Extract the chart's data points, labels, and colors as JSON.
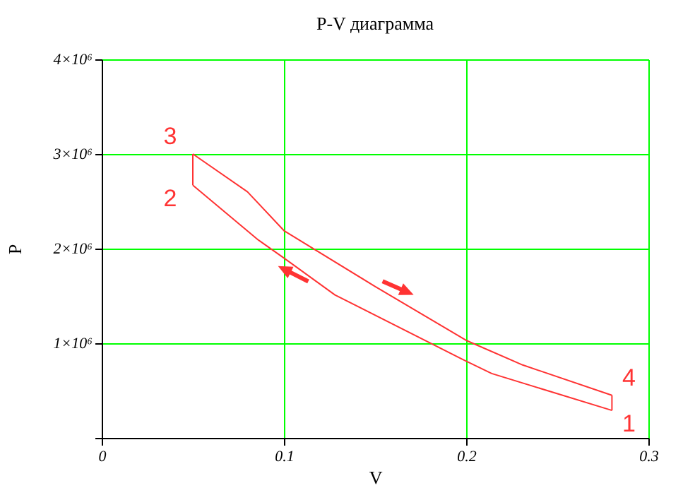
{
  "chart_data": {
    "type": "line",
    "title": "P-V диаграмма",
    "xlabel": "V",
    "ylabel": "P",
    "series": [
      {
        "color": "#ff3333",
        "x": [
          0.05,
          0.086,
          0.1,
          0.128,
          0.2,
          0.214,
          0.28
        ],
        "values": [
          2670000,
          2090000,
          1900000,
          1510000,
          810000,
          680000,
          290000
        ]
      },
      {
        "color": "#ff3333",
        "x": [
          0.05,
          0.08,
          0.1,
          0.15,
          0.2,
          0.231,
          0.28
        ],
        "values": [
          3000000,
          2600000,
          2190000,
          1600000,
          1030000,
          770000,
          450000
        ]
      },
      {
        "color": "#ff3333",
        "x": [
          0.05,
          0.05
        ],
        "values": [
          2670000,
          3000000
        ]
      },
      {
        "color": "#ff3333",
        "x": [
          0.28,
          0.28
        ],
        "values": [
          450000,
          290000
        ]
      }
    ],
    "xlim": [
      0,
      0.3
    ],
    "xticks": [
      0,
      0.1,
      0.2,
      0.3
    ],
    "ylim": [
      0,
      4000000
    ],
    "yticks": [
      {
        "value": 0,
        "label": null
      },
      {
        "value": 1000000,
        "label": "1×10⁶"
      },
      {
        "value": 2000000,
        "label": "2×10⁶"
      },
      {
        "value": 3000000,
        "label": "3×10⁶"
      },
      {
        "value": 4000000,
        "label": "4×10⁶"
      }
    ],
    "grid": true,
    "line_style": "solid",
    "annotations": [
      "3",
      "2",
      "4",
      "1"
    ]
  }
}
